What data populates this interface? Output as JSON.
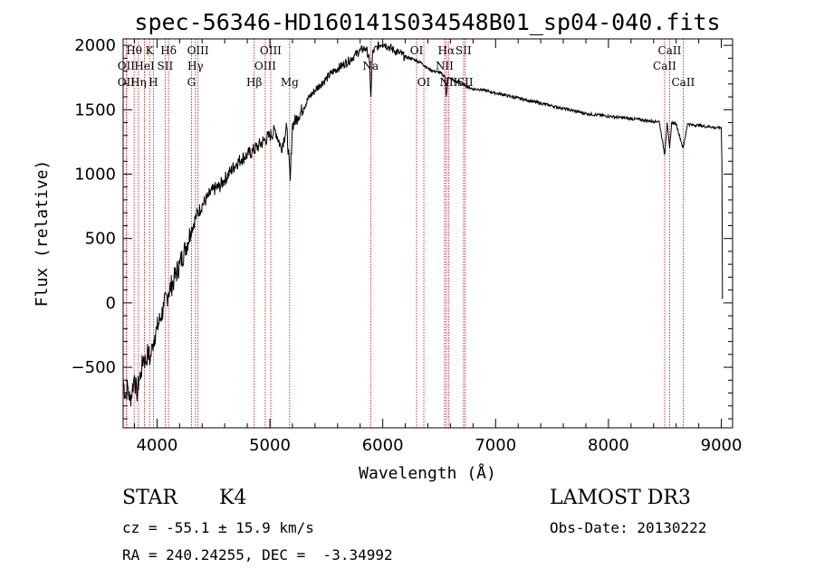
{
  "chart_data": {
    "type": "line",
    "title": "spec-56346-HD160141S034548B01_sp04-040.fits",
    "xlabel": "Wavelength (Å)",
    "ylabel": "Flux (relative)",
    "xlim": [
      3700,
      9100
    ],
    "ylim": [
      -970,
      2050
    ],
    "xticks": [
      4000,
      5000,
      6000,
      7000,
      8000,
      9000
    ],
    "yticks": [
      -500,
      0,
      500,
      1000,
      1500,
      2000
    ],
    "series": [
      {
        "name": "spectrum",
        "x": [
          3700,
          3720,
          3740,
          3760,
          3780,
          3800,
          3820,
          3840,
          3860,
          3880,
          3900,
          3920,
          3940,
          3960,
          3980,
          4000,
          4030,
          4060,
          4100,
          4150,
          4200,
          4250,
          4300,
          4350,
          4400,
          4450,
          4500,
          4550,
          4600,
          4650,
          4700,
          4750,
          4800,
          4850,
          4900,
          4950,
          5000,
          5050,
          5100,
          5150,
          5180,
          5200,
          5250,
          5300,
          5350,
          5400,
          5450,
          5500,
          5550,
          5600,
          5650,
          5700,
          5750,
          5800,
          5850,
          5880,
          5895,
          5910,
          5950,
          6000,
          6050,
          6100,
          6150,
          6200,
          6250,
          6300,
          6350,
          6400,
          6450,
          6500,
          6550,
          6563,
          6580,
          6600,
          6650,
          6700,
          6750,
          6800,
          6850,
          6900,
          6950,
          7000,
          7100,
          7200,
          7300,
          7400,
          7500,
          7600,
          7700,
          7800,
          7900,
          8000,
          8100,
          8200,
          8300,
          8400,
          8450,
          8498,
          8520,
          8542,
          8560,
          8600,
          8662,
          8700,
          8750,
          8800,
          8850,
          8900,
          8950,
          9000,
          9005,
          9010
        ],
        "values": [
          -600,
          -720,
          -650,
          -760,
          -680,
          -560,
          -720,
          -600,
          -540,
          -420,
          -460,
          -380,
          -450,
          -320,
          -250,
          -200,
          -120,
          -30,
          80,
          180,
          300,
          420,
          560,
          680,
          760,
          820,
          880,
          900,
          960,
          1020,
          1080,
          1120,
          1150,
          1180,
          1220,
          1260,
          1300,
          1340,
          1200,
          1360,
          950,
          1380,
          1450,
          1520,
          1600,
          1650,
          1700,
          1740,
          1790,
          1820,
          1850,
          1880,
          1920,
          1960,
          1980,
          1900,
          1600,
          1940,
          1990,
          2020,
          1990,
          1960,
          1940,
          1910,
          1900,
          1880,
          1860,
          1820,
          1800,
          1790,
          1760,
          1600,
          1750,
          1740,
          1720,
          1700,
          1680,
          1660,
          1660,
          1650,
          1640,
          1630,
          1610,
          1590,
          1570,
          1550,
          1530,
          1510,
          1490,
          1470,
          1460,
          1450,
          1440,
          1430,
          1420,
          1410,
          1410,
          1150,
          1400,
          1200,
          1400,
          1390,
          1200,
          1390,
          1380,
          1380,
          1370,
          1370,
          1360,
          1360,
          1100,
          30
        ]
      }
    ],
    "line_labels": [
      {
        "label": "Hθ",
        "x": 3797,
        "row": 0
      },
      {
        "label": "OII",
        "x": 3727,
        "row": 1
      },
      {
        "label": "OII",
        "x": 3727,
        "row": 2
      },
      {
        "label": "K",
        "x": 3934,
        "row": 0
      },
      {
        "label": "HeI",
        "x": 3889,
        "row": 1
      },
      {
        "label": "Hη",
        "x": 3835,
        "row": 2
      },
      {
        "label": "SII",
        "x": 4072,
        "row": 1
      },
      {
        "label": "H",
        "x": 3968,
        "row": 2
      },
      {
        "label": "Hδ",
        "x": 4102,
        "row": 0
      },
      {
        "label": "OIII",
        "x": 4363,
        "row": 0
      },
      {
        "label": "Hγ",
        "x": 4340,
        "row": 1
      },
      {
        "label": "G",
        "x": 4305,
        "row": 2
      },
      {
        "label": "OIII",
        "x": 5007,
        "row": 0
      },
      {
        "label": "OIII",
        "x": 4959,
        "row": 1
      },
      {
        "label": "Hβ",
        "x": 4861,
        "row": 2
      },
      {
        "label": "Mg",
        "x": 5175,
        "row": 2
      },
      {
        "label": "Na",
        "x": 5893,
        "row": 1
      },
      {
        "label": "OI",
        "x": 6300,
        "row": 0
      },
      {
        "label": "OI",
        "x": 6364,
        "row": 2
      },
      {
        "label": "Hα",
        "x": 6563,
        "row": 0
      },
      {
        "label": "NII",
        "x": 6548,
        "row": 1
      },
      {
        "label": "NII",
        "x": 6583,
        "row": 2
      },
      {
        "label": "SII",
        "x": 6716,
        "row": 0
      },
      {
        "label": "SII",
        "x": 6731,
        "row": 2
      },
      {
        "label": "CaII",
        "x": 8542,
        "row": 0
      },
      {
        "label": "CaII",
        "x": 8498,
        "row": 1
      },
      {
        "label": "CaII",
        "x": 8662,
        "row": 2
      }
    ]
  },
  "info": {
    "object_class": "STAR",
    "subclass": "K4",
    "survey": "LAMOST DR3",
    "cz": "cz = -55.1 ± 15.9 km/s",
    "obs_date": "Obs-Date: 20130222",
    "coords": "RA = 240.24255, DEC =  -3.34992"
  },
  "colors": {
    "line_marker": "#cc0000",
    "spectrum": "#000000"
  }
}
